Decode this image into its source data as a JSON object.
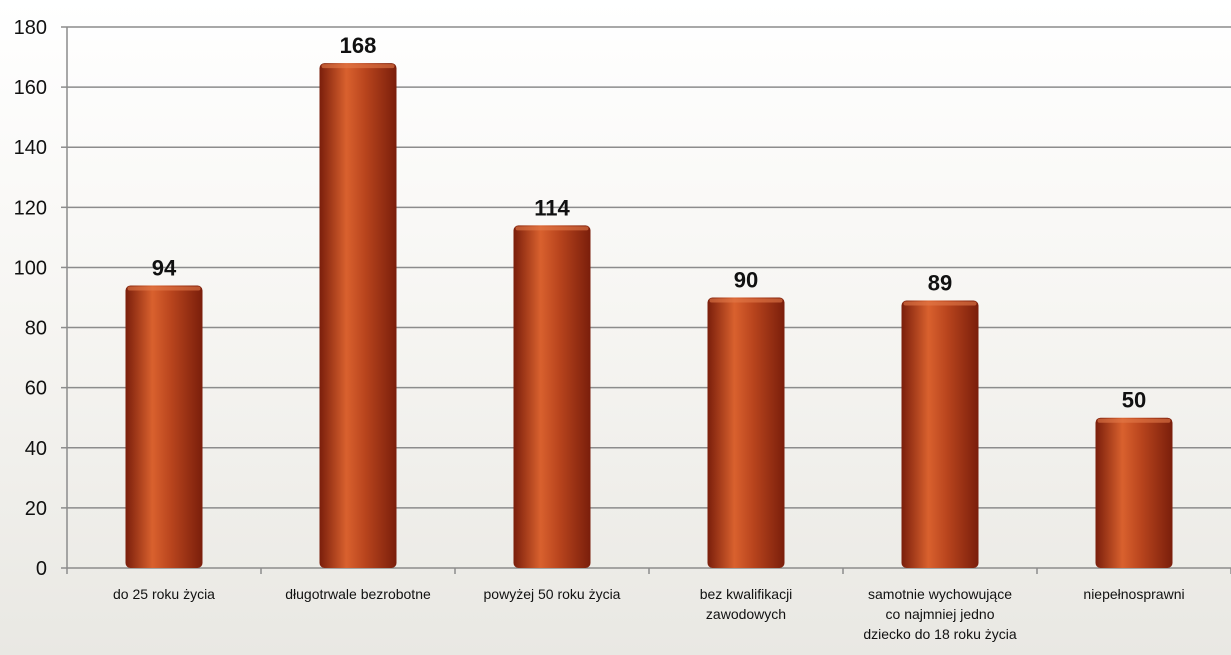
{
  "chart_data": {
    "type": "bar",
    "categories": [
      "do 25 roku życia",
      "długotrwale bezrobotne",
      "powyżej 50 roku życia",
      "bez kwalifikacji zawodowych",
      "samotnie wychowujące co najmniej jedno dziecko do 18 roku życia",
      "niepełnosprawni"
    ],
    "category_lines": [
      [
        "do 25 roku życia"
      ],
      [
        "długotrwale bezrobotne"
      ],
      [
        "powyżej 50 roku życia"
      ],
      [
        "bez kwalifikacji",
        "zawodowych"
      ],
      [
        "samotnie wychowujące",
        "co najmniej jedno",
        "dziecko do 18 roku życia"
      ],
      [
        "niepełnosprawni"
      ]
    ],
    "values": [
      94,
      168,
      114,
      90,
      89,
      50
    ],
    "data_labels": [
      "94",
      "168",
      "114",
      "90",
      "89",
      "50"
    ],
    "y_ticks": [
      "0",
      "20",
      "40",
      "60",
      "80",
      "100",
      "120",
      "140",
      "160",
      "180"
    ],
    "ylim": [
      0,
      180
    ],
    "grid": true,
    "legend": "none",
    "title": "",
    "xlabel": "",
    "ylabel": "",
    "colors": {
      "bar_dark": "#7a1e0b",
      "bar_mid": "#b8441d",
      "bar_light": "#d9612e",
      "grid": "#8c8c8c",
      "axis": "#8c8c8c"
    }
  }
}
